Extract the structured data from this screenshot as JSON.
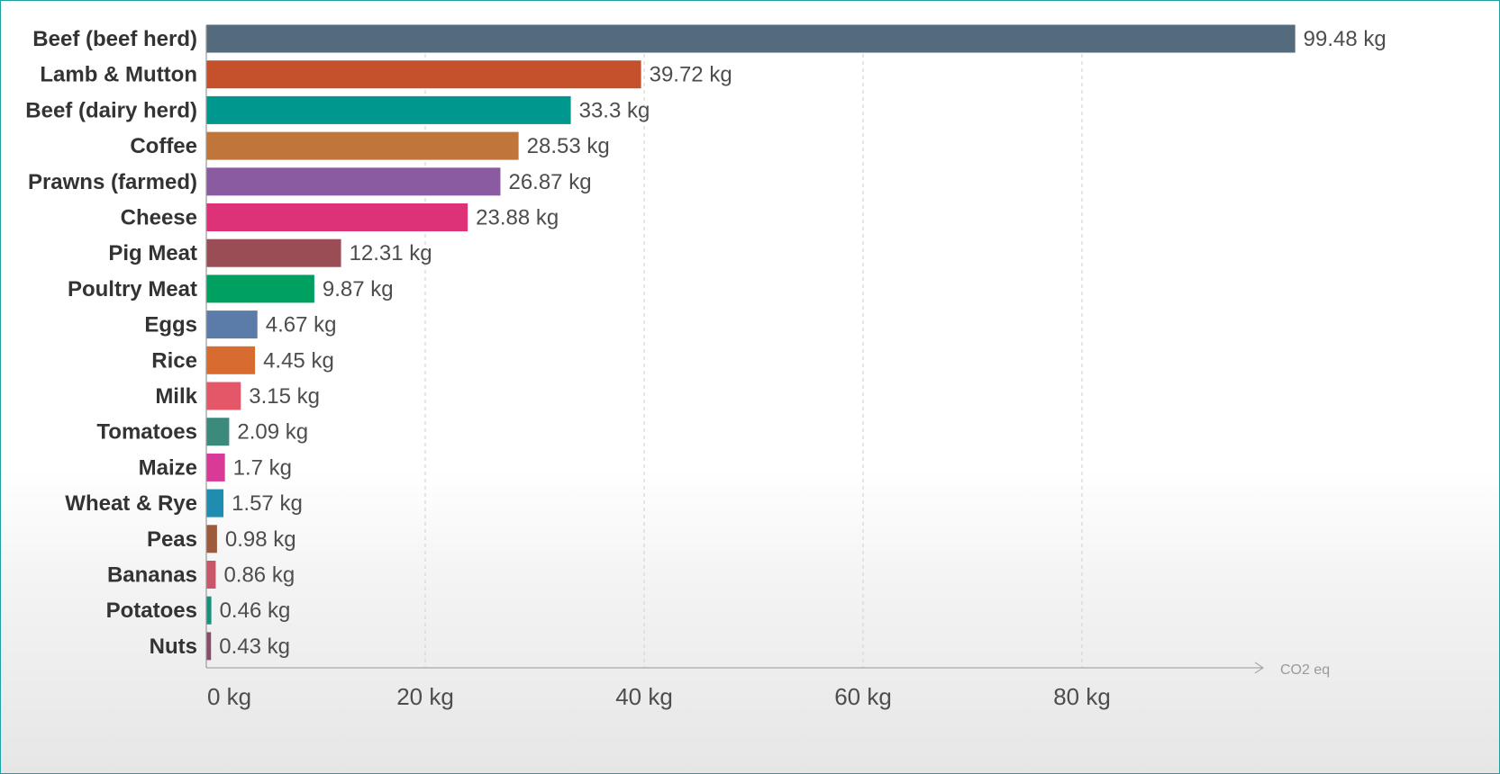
{
  "chart_data": {
    "type": "bar",
    "orientation": "horizontal",
    "categories": [
      "Beef (beef herd)",
      "Lamb & Mutton",
      "Beef (dairy herd)",
      "Coffee",
      "Prawns (farmed)",
      "Cheese",
      "Pig Meat",
      "Poultry Meat",
      "Eggs",
      "Rice",
      "Milk",
      "Tomatoes",
      "Maize",
      "Wheat & Rye",
      "Peas",
      "Bananas",
      "Potatoes",
      "Nuts"
    ],
    "values": [
      99.48,
      39.72,
      33.3,
      28.53,
      26.87,
      23.88,
      12.31,
      9.87,
      4.67,
      4.45,
      3.15,
      2.09,
      1.7,
      1.57,
      0.98,
      0.86,
      0.46,
      0.43
    ],
    "value_labels": [
      "99.48 kg",
      "39.72 kg",
      "33.3 kg",
      "28.53 kg",
      "26.87 kg",
      "23.88 kg",
      "12.31 kg",
      "9.87 kg",
      "4.67 kg",
      "4.45 kg",
      "3.15 kg",
      "2.09 kg",
      "1.7 kg",
      "1.57 kg",
      "0.98 kg",
      "0.86 kg",
      "0.46 kg",
      "0.43 kg"
    ],
    "colors": [
      "#536b7d",
      "#c4502c",
      "#00978f",
      "#c0763a",
      "#8a5ba0",
      "#dd3277",
      "#9b4d56",
      "#00a160",
      "#5b7ba8",
      "#d76b30",
      "#e45768",
      "#3c8a7c",
      "#d93a97",
      "#1f8cb0",
      "#9e5b3c",
      "#c9576a",
      "#17917c",
      "#8c4a6a"
    ],
    "x_ticks": [
      0,
      20,
      40,
      60,
      80
    ],
    "x_tick_labels": [
      "0 kg",
      "20 kg",
      "40 kg",
      "60 kg",
      "80 kg"
    ],
    "x_unit_label": "CO2 eq",
    "xlim": [
      0,
      100
    ],
    "grid": "vertical dashed",
    "legend": "none",
    "title": "",
    "xlabel": "",
    "ylabel": ""
  }
}
